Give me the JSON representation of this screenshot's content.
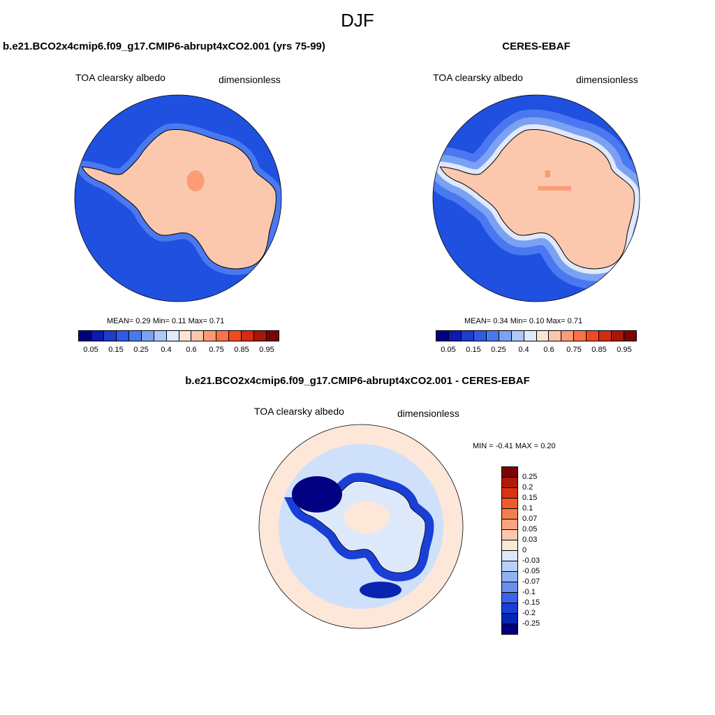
{
  "title": "DJF",
  "colors": {
    "seq": [
      "#000080",
      "#0a1ab4",
      "#1e3ccd",
      "#2f5ae6",
      "#4a78f0",
      "#7ba1f3",
      "#aec8f7",
      "#dfe9fb",
      "#fde3d5",
      "#fcc5ad",
      "#fc9b76",
      "#fb7148",
      "#f04a22",
      "#d42b12",
      "#a51708",
      "#7a0404"
    ],
    "div": [
      "#7a0404",
      "#b01a0a",
      "#dc3214",
      "#f05a2a",
      "#f57e50",
      "#f9a57d",
      "#fcc8ad",
      "#fde7d9",
      "#dde9fb",
      "#b8d0f5",
      "#90b2f0",
      "#6a90ec",
      "#3c64e6",
      "#1a3fd6",
      "#0825b0",
      "#000080"
    ],
    "ocean_model": "#2050e0",
    "ice": "#fcc8ad",
    "ocean_obs": "#2b5ee3",
    "diff_bg": "#fde7d9",
    "diff_light": "#cfe0fb"
  },
  "panels": [
    {
      "title": "b.e21.BCO2x4cmip6.f09_g17.CMIP6-abrupt4xCO2.001 (yrs 75-99)",
      "variable": "TOA clearsky albedo",
      "units": "dimensionless",
      "stats": "MEAN=   0.29  Min=   0.11  Max=   0.71"
    },
    {
      "title": "CERES-EBAF",
      "variable": "TOA clearsky albedo",
      "units": "dimensionless",
      "stats": "MEAN=   0.34  Min=   0.10  Max=   0.71"
    },
    {
      "title": "b.e21.BCO2x4cmip6.f09_g17.CMIP6-abrupt4xCO2.001 - CERES-EBAF",
      "variable": "TOA clearsky albedo",
      "units": "dimensionless",
      "stats": "MIN =  -0.41 MAX =   0.20"
    }
  ],
  "colorbar_seq_labels": [
    "0.05",
    "0.15",
    "0.25",
    "0.4",
    "0.6",
    "0.75",
    "0.85",
    "0.95"
  ],
  "colorbar_div_labels": [
    "0.25",
    "0.2",
    "0.15",
    "0.1",
    "0.07",
    "0.05",
    "0.03",
    "0",
    "-0.03",
    "-0.05",
    "-0.07",
    "-0.1",
    "-0.15",
    "-0.2",
    "-0.25"
  ]
}
